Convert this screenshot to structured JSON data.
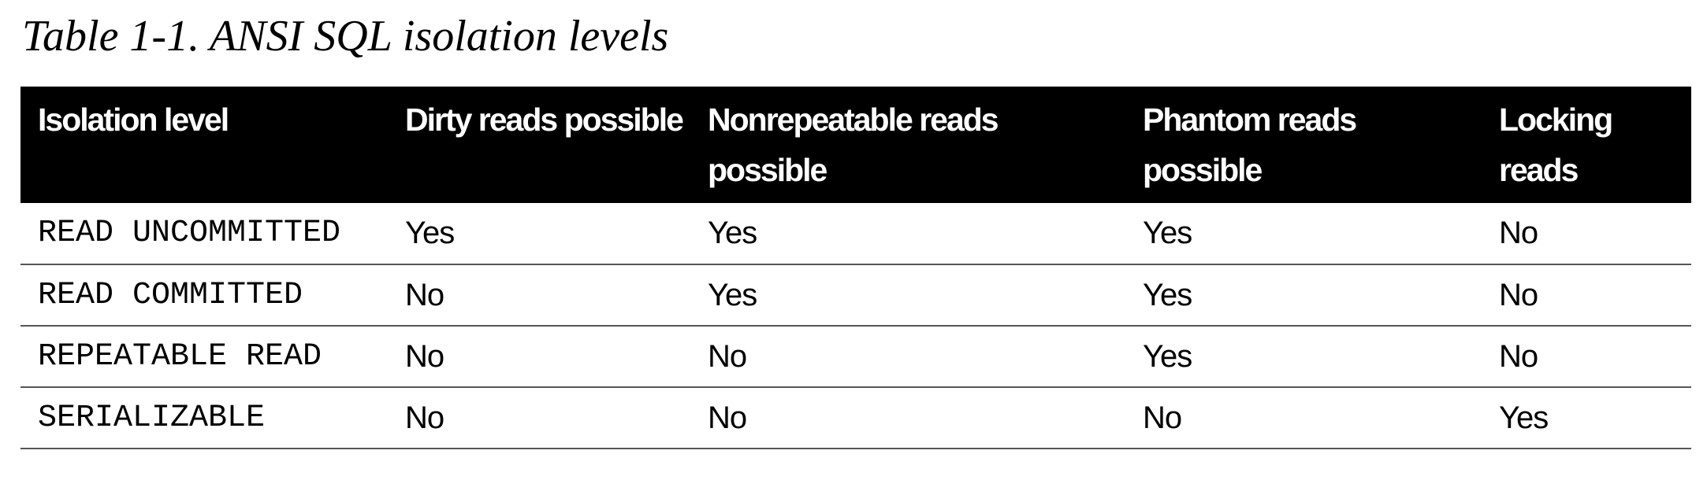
{
  "caption": "Table 1-1. ANSI SQL isolation levels",
  "table": {
    "headers": [
      "Isolation level",
      "Dirty reads possible",
      "Nonrepeatable reads possible",
      "Phantom reads possible",
      "Locking reads"
    ],
    "rows": [
      [
        "READ UNCOMMITTED",
        "Yes",
        "Yes",
        "Yes",
        "No"
      ],
      [
        "READ COMMITTED",
        "No",
        "Yes",
        "Yes",
        "No"
      ],
      [
        "REPEATABLE READ",
        "No",
        "No",
        "Yes",
        "No"
      ],
      [
        "SERIALIZABLE",
        "No",
        "No",
        "No",
        "Yes"
      ]
    ]
  },
  "colors": {
    "header_background": "#000000",
    "header_text": "#ffffff",
    "row_divider": "#555555"
  }
}
